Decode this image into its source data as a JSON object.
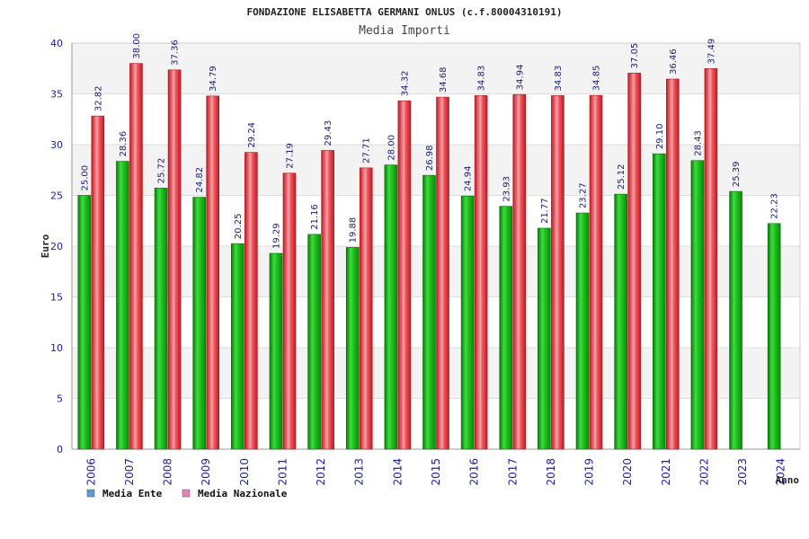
{
  "chart_data": {
    "type": "bar",
    "title": "FONDAZIONE ELISABETTA GERMANI ONLUS (c.f.80004310191)",
    "subtitle": "Media Importi",
    "xlabel": "Anno",
    "ylabel": "Euro",
    "ylim": [
      0,
      40
    ],
    "yticks": [
      0,
      5,
      10,
      15,
      20,
      25,
      30,
      35,
      40
    ],
    "grid": true,
    "legend_position": "bottom-left",
    "categories": [
      "2006",
      "2007",
      "2008",
      "2009",
      "2010",
      "2011",
      "2012",
      "2013",
      "2014",
      "2015",
      "2016",
      "2017",
      "2018",
      "2019",
      "2020",
      "2021",
      "2022",
      "2023",
      "2024"
    ],
    "series": [
      {
        "name": "Media Ente",
        "color": "#22c322",
        "legend_color": "#5b9bd5",
        "values": [
          25.0,
          28.36,
          25.72,
          24.82,
          20.25,
          19.29,
          21.16,
          19.88,
          28.0,
          26.98,
          24.94,
          23.93,
          21.77,
          23.27,
          25.12,
          29.1,
          28.43,
          25.39,
          22.23
        ],
        "labels": [
          "25.00",
          "28.36",
          "25.72",
          "24.82",
          "20.25",
          "19.29",
          "21.16",
          "19.88",
          "28.00",
          "26.98",
          "24.94",
          "23.93",
          "21.77",
          "23.27",
          "25.12",
          "29.10",
          "28.43",
          "25.39",
          "22.23"
        ]
      },
      {
        "name": "Media Nazionale",
        "color": "#e8303a",
        "legend_color": "#e880b8",
        "values": [
          32.82,
          38.0,
          37.36,
          34.79,
          29.24,
          27.19,
          29.43,
          27.71,
          34.32,
          34.68,
          34.83,
          34.94,
          34.83,
          34.85,
          37.05,
          36.46,
          37.49,
          null,
          null
        ],
        "labels": [
          "32.82",
          "38.00",
          "37.36",
          "34.79",
          "29.24",
          "27.19",
          "29.43",
          "27.71",
          "34.32",
          "34.68",
          "34.83",
          "34.94",
          "34.83",
          "34.85",
          "37.05",
          "36.46",
          "37.49",
          null,
          null
        ]
      }
    ]
  }
}
